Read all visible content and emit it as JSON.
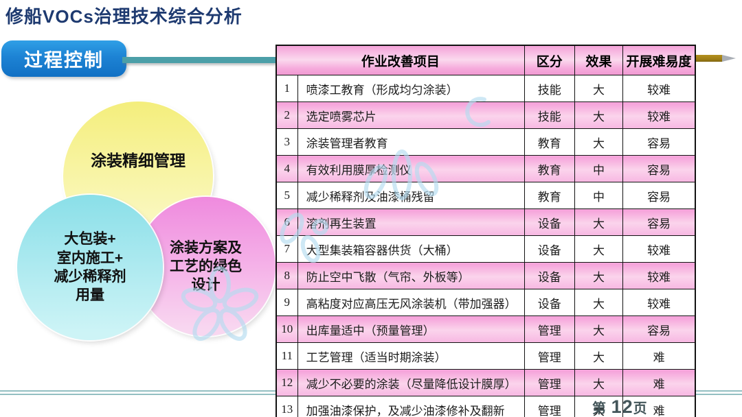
{
  "title": "修船VOCs治理技术综合分析",
  "banner": {
    "label": "过程控制"
  },
  "venn": {
    "circles": [
      {
        "id": "fine-management",
        "text": "涂装精细管理",
        "color": "#f4ee7c"
      },
      {
        "id": "big-package-indoor-thinner",
        "text": "大包装+\n室内施工+\n减少稀释剂\n用量",
        "color": "#8adfe8"
      },
      {
        "id": "green-design",
        "text": "涂装方案及\n工艺的绿色\n设计",
        "color": "#ef8ade"
      }
    ]
  },
  "table": {
    "headers": {
      "project": "作业改善项目",
      "category": "区分",
      "effect": "效果",
      "difficulty": "开展难易度"
    },
    "rows": [
      {
        "no": "1",
        "project": "喷漆工教育（形成均匀涂装）",
        "category": "技能",
        "effect": "大",
        "difficulty": "较难"
      },
      {
        "no": "2",
        "project": "选定喷雾芯片",
        "category": "技能",
        "effect": "大",
        "difficulty": "较难"
      },
      {
        "no": "3",
        "project": "涂装管理者教育",
        "category": "教育",
        "effect": "大",
        "difficulty": "容易"
      },
      {
        "no": "4",
        "project": "有效利用膜厚检测仪",
        "category": "教育",
        "effect": "中",
        "difficulty": "容易"
      },
      {
        "no": "5",
        "project": "减少稀释剂及油漆桶残留",
        "category": "教育",
        "effect": "中",
        "difficulty": "容易"
      },
      {
        "no": "6",
        "project": "溶剂再生装置",
        "category": "设备",
        "effect": "大",
        "difficulty": "容易"
      },
      {
        "no": "7",
        "project": "大型集装箱容器供货（大桶）",
        "category": "设备",
        "effect": "大",
        "difficulty": "较难"
      },
      {
        "no": "8",
        "project": "防止空中飞散（气帘、外板等）",
        "category": "设备",
        "effect": "大",
        "difficulty": "较难"
      },
      {
        "no": "9",
        "project": "高粘度对应高压无风涂装机（带加强器）",
        "category": "设备",
        "effect": "大",
        "difficulty": "较难"
      },
      {
        "no": "10",
        "project": "出库量适中（预量管理）",
        "category": "管理",
        "effect": "大",
        "difficulty": "容易"
      },
      {
        "no": "11",
        "project": "工艺管理（适当时期涂装）",
        "category": "管理",
        "effect": "大",
        "difficulty": "难"
      },
      {
        "no": "12",
        "project": "减少不必要的涂装（尽量降低设计膜厚）",
        "category": "管理",
        "effect": "大",
        "difficulty": "难"
      },
      {
        "no": "13",
        "project": "加强油漆保护，及减少油漆修补及翻新",
        "category": "管理",
        "effect": "大",
        "difficulty": "难"
      }
    ]
  },
  "page": {
    "prefix": "第 ",
    "number": "12",
    "suffix": "页"
  },
  "colors": {
    "title_blue": "#1e3a70",
    "banner_blue": "#1d83d4",
    "teal_line": "#4b9fa8",
    "gold_arrow": "#9c7c15",
    "header_pink": "#f4a2d8",
    "row_pink": "#f59fd9",
    "circle_yellow": "#f4ee7c",
    "circle_cyan": "#8adfe8",
    "circle_pink": "#ef8ade",
    "watermark_blue": "#b5dcf0"
  }
}
